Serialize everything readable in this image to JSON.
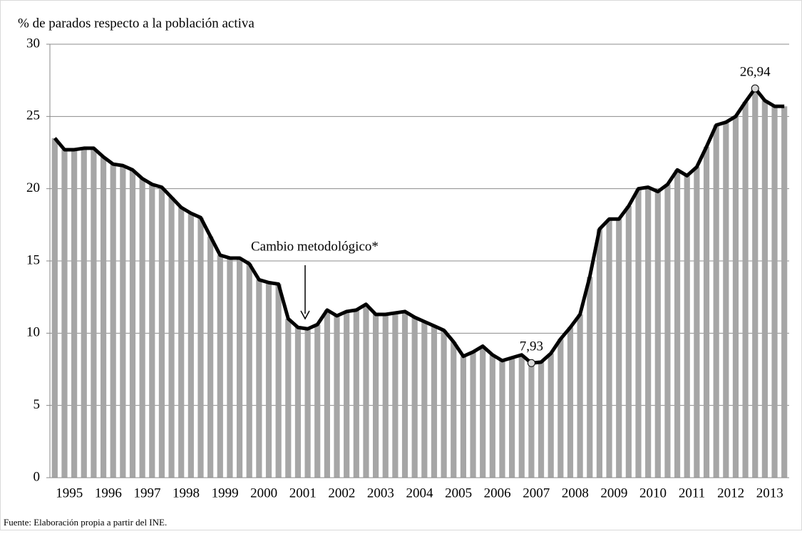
{
  "chart_data": {
    "type": "bar-line",
    "y_axis_label": "% de parados respecto a la población activa",
    "annotation": "Cambio metodológico*",
    "source": "Fuente: Elaboración propia a partir del INE.",
    "categories": [
      "1995",
      null,
      null,
      null,
      "1996",
      null,
      null,
      null,
      "1997",
      null,
      null,
      null,
      "1998",
      null,
      null,
      null,
      "1999",
      null,
      null,
      null,
      "2000",
      null,
      null,
      null,
      "2001",
      null,
      null,
      null,
      "2002",
      null,
      null,
      null,
      "2003",
      null,
      null,
      null,
      "2004",
      null,
      null,
      null,
      "2005",
      null,
      null,
      null,
      "2006",
      null,
      null,
      null,
      "2007",
      null,
      null,
      null,
      "2008",
      null,
      null,
      null,
      "2009",
      null,
      null,
      null,
      "2010",
      null,
      null,
      null,
      "2011",
      null,
      null,
      null,
      "2012",
      null,
      null,
      null,
      "2013",
      null,
      null,
      null
    ],
    "series": [
      {
        "color": "#a6a6a6",
        "line_color": "#000000",
        "values": [
          23.5,
          22.7,
          22.7,
          22.8,
          22.8,
          22.2,
          21.7,
          21.6,
          21.3,
          20.7,
          20.3,
          20.1,
          19.4,
          18.7,
          18.3,
          18.0,
          16.7,
          15.4,
          15.2,
          15.2,
          14.8,
          13.7,
          13.5,
          13.4,
          11.0,
          10.4,
          10.3,
          10.6,
          11.6,
          11.2,
          11.5,
          11.6,
          12.0,
          11.3,
          11.3,
          11.4,
          11.5,
          11.1,
          10.8,
          10.5,
          10.2,
          9.4,
          8.4,
          8.7,
          9.1,
          8.5,
          8.1,
          8.3,
          8.5,
          7.93,
          8.0,
          8.6,
          9.6,
          10.4,
          11.3,
          13.9,
          17.2,
          17.9,
          17.9,
          18.8,
          20.0,
          20.1,
          19.8,
          20.3,
          21.3,
          20.9,
          21.5,
          22.9,
          24.4,
          24.6,
          25.0,
          26.0,
          26.94,
          26.1,
          25.7,
          25.7
        ],
        "value_labels": [
          null,
          null,
          null,
          null,
          null,
          null,
          null,
          null,
          null,
          null,
          null,
          null,
          null,
          null,
          null,
          null,
          null,
          null,
          null,
          null,
          null,
          null,
          null,
          null,
          null,
          null,
          null,
          null,
          null,
          null,
          null,
          null,
          null,
          null,
          null,
          null,
          null,
          null,
          null,
          null,
          null,
          null,
          null,
          null,
          null,
          null,
          null,
          null,
          null,
          "7,93",
          null,
          null,
          null,
          null,
          null,
          null,
          null,
          null,
          null,
          null,
          null,
          null,
          null,
          null,
          null,
          null,
          null,
          null,
          null,
          null,
          null,
          null,
          "26,94",
          null,
          null,
          null
        ]
      }
    ],
    "ylim": [
      0,
      30
    ],
    "yticks": [
      0,
      5,
      10,
      15,
      20,
      25,
      30
    ],
    "grid": true
  }
}
